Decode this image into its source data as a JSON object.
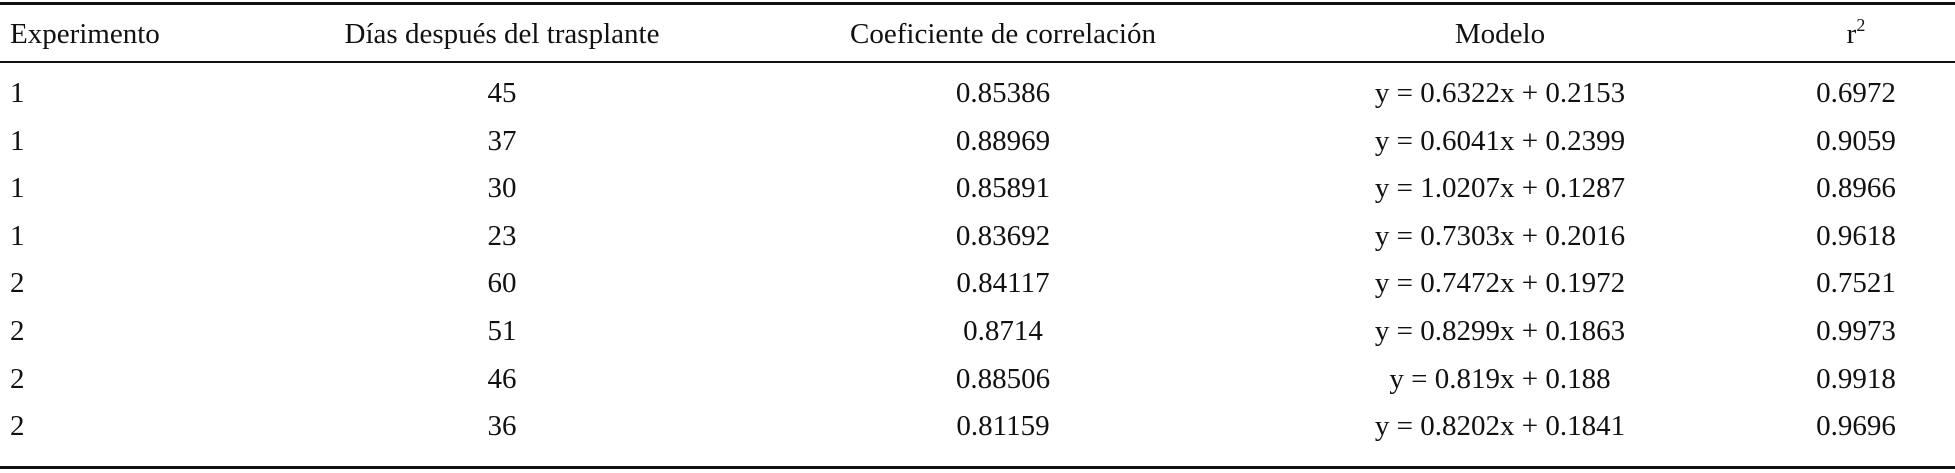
{
  "table": {
    "header": [
      "Experimento",
      "Días después del trasplante",
      "Coeficiente de correlación",
      "Modelo",
      {
        "text": "r",
        "sup": "2"
      }
    ],
    "rows": [
      [
        "1",
        "45",
        "0.85386",
        "y = 0.6322x + 0.2153",
        "0.6972"
      ],
      [
        "1",
        "37",
        "0.88969",
        "y = 0.6041x + 0.2399",
        "0.9059"
      ],
      [
        "1",
        "30",
        "0.85891",
        "y = 1.0207x + 0.1287",
        "0.8966"
      ],
      [
        "1",
        "23",
        "0.83692",
        "y = 0.7303x + 0.2016",
        "0.9618"
      ],
      [
        "2",
        "60",
        "0.84117",
        "y = 0.7472x + 0.1972",
        "0.7521"
      ],
      [
        "2",
        "51",
        "0.8714",
        "y = 0.8299x + 0.1863",
        "0.9973"
      ],
      [
        "2",
        "46",
        "0.88506",
        "y = 0.819x + 0.188",
        "0.9918"
      ],
      [
        "2",
        "36",
        "0.81159",
        "y = 0.8202x + 0.1841",
        "0.9696"
      ]
    ]
  }
}
